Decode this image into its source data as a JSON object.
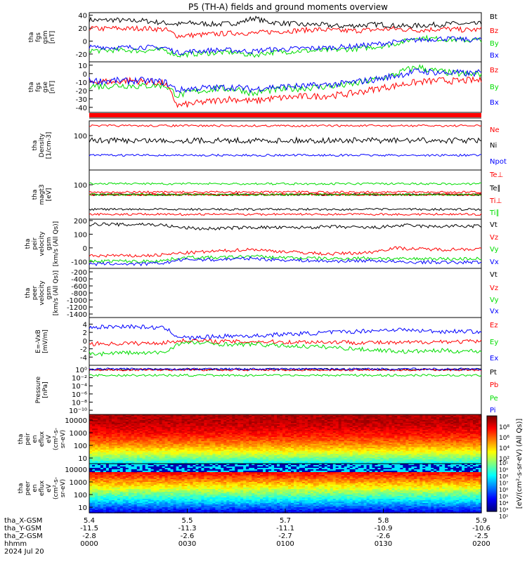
{
  "title": "P5 (TH-A) fields and ground moments overview",
  "colors": {
    "black": "#000000",
    "red": "#ff0000",
    "green": "#00dd00",
    "blue": "#0000ff"
  },
  "chart_data": [
    {
      "type": "line",
      "id": "fgs",
      "ylabel": [
        "tha",
        "fgs",
        "gsm",
        "[nT]"
      ],
      "ticks": [
        40,
        20,
        0,
        -20
      ],
      "ylim": [
        -32,
        44
      ],
      "series": [
        {
          "name": "Bt",
          "color": "black",
          "values": [
            33,
            32,
            33,
            31,
            32,
            30,
            28,
            26,
            28,
            27,
            26,
            27,
            29,
            36,
            30,
            28,
            27,
            25,
            26,
            24,
            23,
            24,
            25,
            26,
            24,
            23,
            24,
            25,
            26,
            27,
            26,
            27
          ]
        },
        {
          "name": "Bz",
          "color": "red",
          "values": [
            20,
            19,
            20,
            19,
            20,
            19,
            18,
            8,
            9,
            10,
            11,
            12,
            13,
            12,
            14,
            15,
            16,
            17,
            18,
            17,
            16,
            16,
            17,
            18,
            19,
            18,
            17,
            18,
            19,
            18,
            17,
            18
          ]
        },
        {
          "name": "By",
          "color": "green",
          "values": [
            -14,
            -15,
            -14,
            -14,
            -15,
            -14,
            -14,
            -22,
            -20,
            -19,
            -18,
            -17,
            -19,
            -22,
            -18,
            -17,
            -16,
            -15,
            -15,
            -14,
            -13,
            -12,
            -10,
            -8,
            -5,
            0,
            6,
            4,
            3,
            2,
            1,
            2
          ]
        },
        {
          "name": "Bx",
          "color": "blue",
          "values": [
            -10,
            -9,
            -10,
            -10,
            -9,
            -10,
            -10,
            -18,
            -16,
            -15,
            -14,
            -14,
            -15,
            -16,
            -13,
            -13,
            -12,
            -11,
            -11,
            -10,
            -9,
            -8,
            -6,
            -4,
            -2,
            0,
            2,
            3,
            4,
            3,
            2,
            3
          ]
        }
      ]
    },
    {
      "type": "line",
      "id": "fgs-gse",
      "ylabel": [
        "tha",
        "fgs",
        "gse",
        "[nT]"
      ],
      "ticks": [
        10,
        0,
        -10,
        -20,
        -30,
        -40
      ],
      "ylim": [
        -46,
        14
      ],
      "series": [
        {
          "name": "Bz",
          "color": "red",
          "values": [
            -10,
            -9,
            -10,
            -8,
            -9,
            -10,
            -12,
            -38,
            -36,
            -34,
            -32,
            -30,
            -31,
            -33,
            -30,
            -29,
            -28,
            -27,
            -27,
            -26,
            -25,
            -23,
            -20,
            -17,
            -15,
            -12,
            -10,
            -9,
            -8,
            -9,
            -8,
            -8
          ]
        },
        {
          "name": "By",
          "color": "green",
          "values": [
            -14,
            -15,
            -14,
            -14,
            -15,
            -14,
            -14,
            -26,
            -22,
            -20,
            -18,
            -18,
            -19,
            -24,
            -20,
            -19,
            -18,
            -17,
            -16,
            -15,
            -14,
            -12,
            -9,
            -6,
            -2,
            4,
            8,
            4,
            2,
            0,
            -1,
            0
          ]
        },
        {
          "name": "Bx",
          "color": "blue",
          "values": [
            -8,
            -9,
            -8,
            -9,
            -8,
            -9,
            -10,
            -20,
            -18,
            -17,
            -17,
            -16,
            -17,
            -19,
            -16,
            -16,
            -15,
            -15,
            -14,
            -13,
            -12,
            -10,
            -8,
            -6,
            -3,
            0,
            3,
            2,
            1,
            1,
            0,
            1
          ]
        }
      ]
    },
    {
      "type": "line",
      "id": "density",
      "ylabel": [
        "tha",
        "Density",
        "[1/cm-3]"
      ],
      "ticks": [
        100
      ],
      "log": true,
      "series": [
        {
          "name": "Ne",
          "color": "red",
          "values": [
            0.9
          ]
        },
        {
          "name": "Ni",
          "color": "black",
          "values": [
            0.6
          ]
        },
        {
          "name": "Npot",
          "color": "blue",
          "values": [
            0.3
          ]
        }
      ]
    },
    {
      "type": "line",
      "id": "temperature",
      "ylabel": [
        "tha",
        "magt3",
        "[eV]"
      ],
      "ticks": [
        100
      ],
      "log": true,
      "series": [
        {
          "name": "Te⊥",
          "color": "red",
          "values": [
            0
          ]
        },
        {
          "name": "Te∥",
          "color": "black",
          "values": [
            0
          ]
        },
        {
          "name": "Ti⊥",
          "color": "red",
          "values": [
            0
          ]
        },
        {
          "name": "Ti∥",
          "color": "green",
          "values": [
            0
          ]
        }
      ]
    },
    {
      "type": "line",
      "id": "peir-velocity",
      "ylabel": [
        "tha",
        "peir",
        "velocity",
        "gsm",
        "[km/s (All Qs)]"
      ],
      "ticks": [
        200,
        100,
        0,
        -100
      ],
      "ylim": [
        -150,
        210
      ],
      "series": [
        {
          "name": "Vt",
          "color": "black",
          "values": [
            170,
            175,
            172,
            168,
            175,
            170,
            165,
            150,
            145,
            140,
            142,
            145,
            148,
            150,
            150,
            148,
            147,
            150,
            152,
            155,
            153,
            150,
            148,
            150,
            160,
            165,
            160,
            155,
            158,
            160,
            158,
            160
          ]
        },
        {
          "name": "Vz",
          "color": "red",
          "values": [
            -60,
            -58,
            -55,
            -60,
            -58,
            -55,
            -50,
            -40,
            -35,
            -30,
            -25,
            -20,
            -15,
            -10,
            -20,
            -25,
            -30,
            -35,
            -40,
            -45,
            -40,
            -38,
            -35,
            -20,
            0,
            -5,
            -8,
            -10,
            -12,
            -10,
            -8,
            -10
          ]
        },
        {
          "name": "Vy",
          "color": "green",
          "values": [
            -100,
            -98,
            -95,
            -98,
            -100,
            -95,
            -92,
            -75,
            -70,
            -70,
            -72,
            -68,
            -65,
            -60,
            -68,
            -70,
            -72,
            -75,
            -76,
            -80,
            -78,
            -76,
            -74,
            -75,
            -80,
            -82,
            -80,
            -78,
            -80,
            -82,
            -78,
            -80
          ]
        },
        {
          "name": "Vx",
          "color": "blue",
          "values": [
            -120,
            -118,
            -115,
            -118,
            -120,
            -115,
            -110,
            -90,
            -85,
            -85,
            -88,
            -82,
            -80,
            -75,
            -85,
            -88,
            -90,
            -92,
            -95,
            -98,
            -96,
            -95,
            -93,
            -95,
            -100,
            -108,
            -105,
            -103,
            -106,
            -108,
            -104,
            -106
          ]
        }
      ]
    },
    {
      "type": "line",
      "id": "peer-velocity",
      "ylabel": [
        "tha",
        "peer",
        "velocity",
        "gsm",
        "[km/s (All Qs)]"
      ],
      "ticks": [
        -200,
        -400,
        -600,
        -800,
        -1000,
        -1200,
        -1400
      ],
      "ylim": [
        -1500,
        -100
      ],
      "series": [
        {
          "name": "Vt",
          "color": "black",
          "values": []
        },
        {
          "name": "Vz",
          "color": "red",
          "values": []
        },
        {
          "name": "Vy",
          "color": "green",
          "values": []
        },
        {
          "name": "Vx",
          "color": "blue",
          "values": []
        }
      ]
    },
    {
      "type": "line",
      "id": "efield",
      "ylabel": [
        "E=-VxB",
        "[mV/m]"
      ],
      "ticks": [
        4,
        2,
        0,
        -2,
        -4
      ],
      "ylim": [
        -6,
        5.6
      ],
      "series": [
        {
          "name": "Ez",
          "color": "red",
          "values": [
            -0.8,
            -0.7,
            -0.8,
            -0.6,
            -0.7,
            -0.6,
            -0.5,
            -0.1,
            0.0,
            -0.1,
            -0.2,
            -0.2,
            -0.3,
            -0.2,
            -0.3,
            -0.3,
            -0.4,
            -0.3,
            -0.3,
            -0.4,
            -0.3,
            -0.5,
            -0.4,
            -0.5,
            -0.6,
            -0.5,
            -0.4,
            -0.3,
            -0.2,
            -0.3,
            -0.2,
            -0.3
          ]
        },
        {
          "name": "Ey",
          "color": "green",
          "values": [
            -3,
            -3.2,
            -3,
            -2.9,
            -3.1,
            -3,
            -2.8,
            -0.8,
            -0.5,
            -0.6,
            -0.8,
            -0.9,
            -1.0,
            -0.8,
            -1.1,
            -1.2,
            -1.3,
            -1.4,
            -1.5,
            -1.6,
            -1.8,
            -2.0,
            -2.2,
            -2.3,
            -2.5,
            -2.7,
            -2.6,
            -2.5,
            -2.4,
            -2.6,
            -2.5,
            -2.6
          ]
        },
        {
          "name": "Ex",
          "color": "blue",
          "values": [
            3.2,
            3.3,
            3.4,
            3.5,
            3.3,
            3.2,
            3.0,
            1.0,
            0.6,
            0.8,
            1.0,
            1.1,
            1.2,
            1.1,
            1.3,
            1.5,
            1.6,
            1.7,
            1.8,
            2.0,
            2.1,
            2.2,
            2.4,
            2.5,
            2.7,
            2.6,
            2.4,
            2.3,
            2.2,
            2.3,
            2.2,
            2.2
          ]
        }
      ]
    },
    {
      "type": "line",
      "id": "pressure",
      "ylabel": [
        "Pressure",
        "[nPa]"
      ],
      "ticks": [
        "10⁰",
        "10⁻²",
        "10⁻⁴",
        "10⁻⁶",
        "10⁻⁸",
        "10⁻¹⁰"
      ],
      "log": true,
      "ylim": [
        -11.2,
        0.6
      ],
      "series": [
        {
          "name": "Pt",
          "color": "black",
          "values": [
            -0.4
          ]
        },
        {
          "name": "Pb",
          "color": "red",
          "values": [
            -0.5
          ]
        },
        {
          "name": "Pe",
          "color": "green",
          "values": [
            -1.8
          ]
        },
        {
          "name": "Pi",
          "color": "blue",
          "values": [
            -0.3
          ]
        }
      ]
    },
    {
      "type": "heatmap",
      "id": "peir-spec",
      "ylabel": [
        "tha",
        "peir",
        "en",
        "eflux",
        "eV",
        "(cm²-s-",
        "sr-eV)"
      ],
      "ticks": [
        10000,
        1000,
        100,
        10
      ],
      "log": true
    },
    {
      "type": "heatmap",
      "id": "peer-spec",
      "ylabel": [
        "tha",
        "peer",
        "en",
        "eflux",
        "eV",
        "(cm²-s-",
        "sr-eV)"
      ],
      "ticks": [
        10000,
        1000,
        100,
        10
      ],
      "log": true
    }
  ],
  "colorbar": {
    "label": "[eV/(cm²-s-sr-eV) (All Qs)]",
    "ticks_upper": [
      "10⁸",
      "10⁶",
      "10⁴",
      "10²"
    ],
    "ticks_lower": [
      "10¹",
      "10⁰",
      "10⁸",
      "10⁷",
      "10⁶",
      "10⁵",
      "10⁴",
      "10³",
      "10²"
    ]
  },
  "x_axis": {
    "rows": [
      {
        "label": "tha_X-GSM",
        "values": [
          "5.4",
          "5.5",
          "5.7",
          "5.8",
          "5.9"
        ]
      },
      {
        "label": "tha_Y-GSM",
        "values": [
          "-11.5",
          "-11.3",
          "-11.1",
          "-10.9",
          "-10.6"
        ]
      },
      {
        "label": "tha_Z-GSM",
        "values": [
          "-2.8",
          "-2.6",
          "-2.7",
          "-2.6",
          "-2.5"
        ]
      },
      {
        "label": "hhmm",
        "values": [
          "0000",
          "0030",
          "0100",
          "0130",
          "0200"
        ]
      }
    ],
    "date": "2024 Jul 20"
  }
}
